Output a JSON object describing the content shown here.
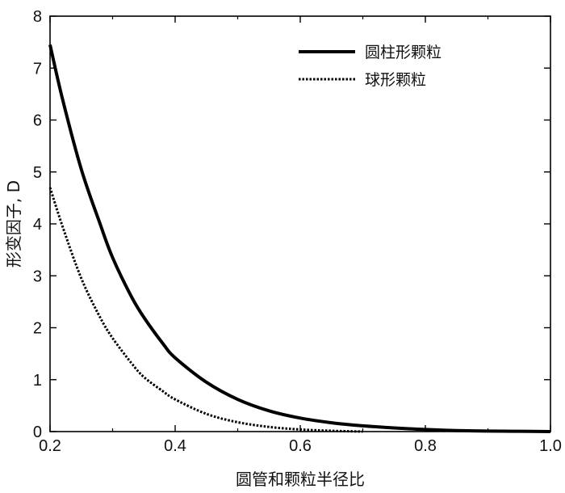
{
  "chart_data": {
    "type": "line",
    "xlabel": "圆管和颗粒半径比",
    "ylabel": "形变因子, D",
    "xlim": [
      0.2,
      1.0
    ],
    "ylim": [
      0,
      8
    ],
    "x_ticks": [
      "0.2",
      "0.4",
      "0.6",
      "0.8",
      "1.0"
    ],
    "y_ticks": [
      "0",
      "1",
      "2",
      "3",
      "4",
      "5",
      "6",
      "7",
      "8"
    ],
    "grid": false,
    "legend_position": "top-right",
    "series": [
      {
        "name": "圆柱形颗粒",
        "style": "solid",
        "color": "#000000",
        "x": [
          0.2,
          0.22,
          0.25,
          0.28,
          0.3,
          0.33,
          0.35,
          0.38,
          0.4,
          0.45,
          0.5,
          0.55,
          0.6,
          0.65,
          0.7,
          0.75,
          0.8,
          0.85,
          0.9,
          0.95,
          1.0
        ],
        "y": [
          7.45,
          6.4,
          5.05,
          4.0,
          3.35,
          2.6,
          2.2,
          1.7,
          1.42,
          0.95,
          0.62,
          0.4,
          0.26,
          0.17,
          0.11,
          0.07,
          0.04,
          0.02,
          0.01,
          0.005,
          0.0
        ]
      },
      {
        "name": "球形颗粒",
        "style": "dotted",
        "color": "#000000",
        "x": [
          0.2,
          0.22,
          0.25,
          0.28,
          0.3,
          0.33,
          0.35,
          0.38,
          0.4,
          0.45,
          0.5,
          0.55,
          0.6,
          0.65,
          0.7
        ],
        "y": [
          4.7,
          3.95,
          2.95,
          2.2,
          1.8,
          1.32,
          1.05,
          0.78,
          0.62,
          0.34,
          0.18,
          0.09,
          0.04,
          0.015,
          0.0
        ]
      }
    ]
  }
}
